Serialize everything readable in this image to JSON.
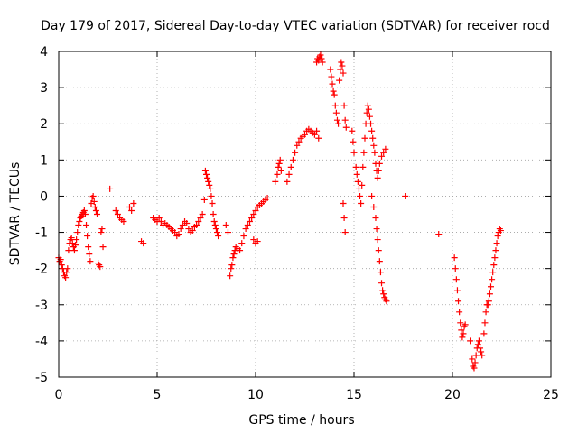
{
  "chart_data": {
    "type": "scatter",
    "title": "Day 179 of 2017, Sidereal Day-to-day VTEC variation (SDTVAR) for receiver rocd",
    "xlabel": "GPS time / hours",
    "ylabel": "SDTVAR / TECUs",
    "xlim": [
      0,
      25
    ],
    "ylim": [
      -5,
      4
    ],
    "xticks": [
      0,
      5,
      10,
      15,
      20,
      25
    ],
    "yticks": [
      -5,
      -4,
      -3,
      -2,
      -1,
      0,
      1,
      2,
      3,
      4
    ],
    "xtick_labels": [
      "0",
      "5",
      "10",
      "15",
      "20",
      "25"
    ],
    "ytick_labels": [
      "-5",
      "-4",
      "-3",
      "-2",
      "-1",
      "0",
      "1",
      "2",
      "3",
      "4"
    ],
    "grid": true,
    "marker": "+",
    "color": "#ff0000",
    "series": [
      {
        "name": "SDTVAR",
        "points": [
          [
            0.0,
            -1.7
          ],
          [
            0.05,
            -1.8
          ],
          [
            0.1,
            -1.75
          ],
          [
            0.15,
            -1.9
          ],
          [
            0.2,
            -2.0
          ],
          [
            0.25,
            -2.1
          ],
          [
            0.3,
            -2.2
          ],
          [
            0.35,
            -2.25
          ],
          [
            0.4,
            -2.1
          ],
          [
            0.45,
            -2.0
          ],
          [
            0.5,
            -1.5
          ],
          [
            0.55,
            -1.3
          ],
          [
            0.6,
            -1.2
          ],
          [
            0.65,
            -1.15
          ],
          [
            0.7,
            -1.3
          ],
          [
            0.75,
            -1.4
          ],
          [
            0.8,
            -1.5
          ],
          [
            0.85,
            -1.35
          ],
          [
            0.9,
            -1.2
          ],
          [
            0.95,
            -1.0
          ],
          [
            1.0,
            -0.8
          ],
          [
            1.05,
            -0.7
          ],
          [
            1.1,
            -0.6
          ],
          [
            1.15,
            -0.55
          ],
          [
            1.2,
            -0.5
          ],
          [
            1.25,
            -0.45
          ],
          [
            1.3,
            -0.4
          ],
          [
            1.35,
            -0.5
          ],
          [
            1.4,
            -0.8
          ],
          [
            1.45,
            -1.1
          ],
          [
            1.5,
            -1.4
          ],
          [
            1.55,
            -1.6
          ],
          [
            1.6,
            -1.8
          ],
          [
            1.65,
            -0.2
          ],
          [
            1.7,
            -0.05
          ],
          [
            1.75,
            0.0
          ],
          [
            1.8,
            -0.15
          ],
          [
            1.85,
            -0.3
          ],
          [
            1.9,
            -0.4
          ],
          [
            1.95,
            -0.5
          ],
          [
            2.0,
            -1.85
          ],
          [
            2.05,
            -1.9
          ],
          [
            2.1,
            -1.95
          ],
          [
            2.15,
            -1.0
          ],
          [
            2.2,
            -0.9
          ],
          [
            2.25,
            -1.4
          ],
          [
            2.6,
            0.2
          ],
          [
            2.9,
            -0.4
          ],
          [
            3.0,
            -0.5
          ],
          [
            3.1,
            -0.6
          ],
          [
            3.2,
            -0.65
          ],
          [
            3.3,
            -0.7
          ],
          [
            3.6,
            -0.3
          ],
          [
            3.7,
            -0.4
          ],
          [
            3.8,
            -0.2
          ],
          [
            4.2,
            -1.25
          ],
          [
            4.3,
            -1.3
          ],
          [
            4.8,
            -0.6
          ],
          [
            4.9,
            -0.65
          ],
          [
            5.0,
            -0.7
          ],
          [
            5.1,
            -0.6
          ],
          [
            5.2,
            -0.7
          ],
          [
            5.3,
            -0.8
          ],
          [
            5.4,
            -0.75
          ],
          [
            5.5,
            -0.8
          ],
          [
            5.6,
            -0.85
          ],
          [
            5.7,
            -0.9
          ],
          [
            5.8,
            -0.95
          ],
          [
            5.9,
            -1.0
          ],
          [
            6.0,
            -1.1
          ],
          [
            6.1,
            -1.05
          ],
          [
            6.2,
            -0.9
          ],
          [
            6.3,
            -0.8
          ],
          [
            6.4,
            -0.7
          ],
          [
            6.5,
            -0.75
          ],
          [
            6.6,
            -0.9
          ],
          [
            6.7,
            -1.0
          ],
          [
            6.8,
            -0.95
          ],
          [
            6.9,
            -0.85
          ],
          [
            7.0,
            -0.8
          ],
          [
            7.1,
            -0.7
          ],
          [
            7.2,
            -0.6
          ],
          [
            7.3,
            -0.5
          ],
          [
            7.4,
            -0.1
          ],
          [
            7.45,
            0.7
          ],
          [
            7.5,
            0.6
          ],
          [
            7.55,
            0.5
          ],
          [
            7.6,
            0.4
          ],
          [
            7.65,
            0.3
          ],
          [
            7.7,
            0.2
          ],
          [
            7.75,
            0.0
          ],
          [
            7.8,
            -0.2
          ],
          [
            7.85,
            -0.5
          ],
          [
            7.9,
            -0.7
          ],
          [
            7.95,
            -0.8
          ],
          [
            8.0,
            -0.9
          ],
          [
            8.05,
            -1.0
          ],
          [
            8.1,
            -1.1
          ],
          [
            8.5,
            -0.8
          ],
          [
            8.6,
            -1.0
          ],
          [
            8.7,
            -2.2
          ],
          [
            8.75,
            -2.0
          ],
          [
            8.8,
            -1.9
          ],
          [
            8.85,
            -1.7
          ],
          [
            8.9,
            -1.6
          ],
          [
            8.95,
            -1.5
          ],
          [
            9.0,
            -1.4
          ],
          [
            9.1,
            -1.45
          ],
          [
            9.2,
            -1.5
          ],
          [
            9.3,
            -1.3
          ],
          [
            9.4,
            -1.1
          ],
          [
            9.5,
            -0.9
          ],
          [
            9.6,
            -0.8
          ],
          [
            9.7,
            -0.7
          ],
          [
            9.8,
            -0.6
          ],
          [
            9.9,
            -0.5
          ],
          [
            10.0,
            -0.4
          ],
          [
            10.1,
            -0.3
          ],
          [
            10.2,
            -0.25
          ],
          [
            10.3,
            -0.2
          ],
          [
            10.4,
            -0.15
          ],
          [
            10.5,
            -0.1
          ],
          [
            10.6,
            -0.05
          ],
          [
            9.9,
            -1.2
          ],
          [
            10.0,
            -1.3
          ],
          [
            10.1,
            -1.25
          ],
          [
            11.0,
            0.4
          ],
          [
            11.1,
            0.6
          ],
          [
            11.15,
            0.8
          ],
          [
            11.2,
            0.9
          ],
          [
            11.25,
            1.0
          ],
          [
            11.3,
            0.7
          ],
          [
            11.6,
            0.4
          ],
          [
            11.7,
            0.6
          ],
          [
            11.8,
            0.8
          ],
          [
            11.9,
            1.0
          ],
          [
            12.0,
            1.2
          ],
          [
            12.1,
            1.4
          ],
          [
            12.2,
            1.5
          ],
          [
            12.3,
            1.6
          ],
          [
            12.4,
            1.65
          ],
          [
            12.5,
            1.7
          ],
          [
            12.6,
            1.8
          ],
          [
            12.7,
            1.85
          ],
          [
            12.8,
            1.8
          ],
          [
            12.9,
            1.75
          ],
          [
            13.0,
            1.7
          ],
          [
            13.1,
            1.8
          ],
          [
            13.2,
            1.6
          ],
          [
            13.1,
            3.7
          ],
          [
            13.15,
            3.8
          ],
          [
            13.2,
            3.75
          ],
          [
            13.25,
            3.85
          ],
          [
            13.3,
            3.9
          ],
          [
            13.35,
            3.8
          ],
          [
            13.4,
            3.7
          ],
          [
            13.8,
            3.5
          ],
          [
            13.85,
            3.3
          ],
          [
            13.9,
            3.1
          ],
          [
            13.95,
            2.9
          ],
          [
            14.0,
            2.8
          ],
          [
            14.05,
            2.5
          ],
          [
            14.1,
            2.3
          ],
          [
            14.15,
            2.1
          ],
          [
            14.2,
            2.0
          ],
          [
            14.25,
            3.2
          ],
          [
            14.3,
            3.5
          ],
          [
            14.35,
            3.7
          ],
          [
            14.4,
            3.6
          ],
          [
            14.45,
            3.4
          ],
          [
            14.5,
            2.5
          ],
          [
            14.55,
            2.1
          ],
          [
            14.6,
            1.9
          ],
          [
            14.45,
            -0.2
          ],
          [
            14.5,
            -0.6
          ],
          [
            14.55,
            -1.0
          ],
          [
            14.9,
            1.8
          ],
          [
            14.95,
            1.5
          ],
          [
            15.0,
            1.2
          ],
          [
            15.1,
            0.8
          ],
          [
            15.15,
            0.6
          ],
          [
            15.2,
            0.4
          ],
          [
            15.25,
            0.2
          ],
          [
            15.3,
            0.0
          ],
          [
            15.35,
            -0.2
          ],
          [
            15.4,
            0.3
          ],
          [
            15.45,
            0.8
          ],
          [
            15.5,
            1.2
          ],
          [
            15.55,
            1.6
          ],
          [
            15.6,
            2.0
          ],
          [
            15.65,
            2.3
          ],
          [
            15.7,
            2.5
          ],
          [
            15.75,
            2.4
          ],
          [
            15.8,
            2.2
          ],
          [
            15.85,
            2.0
          ],
          [
            15.9,
            1.8
          ],
          [
            15.95,
            1.6
          ],
          [
            16.0,
            1.4
          ],
          [
            16.05,
            1.2
          ],
          [
            16.1,
            0.9
          ],
          [
            16.15,
            0.7
          ],
          [
            16.2,
            0.5
          ],
          [
            16.25,
            0.7
          ],
          [
            16.3,
            0.9
          ],
          [
            16.4,
            1.1
          ],
          [
            16.5,
            1.2
          ],
          [
            16.6,
            1.3
          ],
          [
            15.9,
            0.0
          ],
          [
            16.0,
            -0.3
          ],
          [
            16.1,
            -0.6
          ],
          [
            16.15,
            -0.9
          ],
          [
            16.2,
            -1.2
          ],
          [
            16.25,
            -1.5
          ],
          [
            16.3,
            -1.8
          ],
          [
            16.35,
            -2.1
          ],
          [
            16.4,
            -2.4
          ],
          [
            16.45,
            -2.6
          ],
          [
            16.5,
            -2.7
          ],
          [
            16.55,
            -2.8
          ],
          [
            16.6,
            -2.85
          ],
          [
            16.65,
            -2.9
          ],
          [
            17.6,
            0.0
          ],
          [
            19.3,
            -1.05
          ],
          [
            20.1,
            -1.7
          ],
          [
            20.15,
            -2.0
          ],
          [
            20.2,
            -2.3
          ],
          [
            20.25,
            -2.6
          ],
          [
            20.3,
            -2.9
          ],
          [
            20.35,
            -3.2
          ],
          [
            20.4,
            -3.5
          ],
          [
            20.45,
            -3.7
          ],
          [
            20.5,
            -3.9
          ],
          [
            20.55,
            -3.8
          ],
          [
            20.6,
            -3.6
          ],
          [
            20.65,
            -3.55
          ],
          [
            20.9,
            -4.0
          ],
          [
            21.0,
            -4.5
          ],
          [
            21.05,
            -4.7
          ],
          [
            21.1,
            -4.75
          ],
          [
            21.15,
            -4.6
          ],
          [
            21.2,
            -4.4
          ],
          [
            21.25,
            -4.2
          ],
          [
            21.3,
            -4.1
          ],
          [
            21.35,
            -4.0
          ],
          [
            21.4,
            -4.2
          ],
          [
            21.45,
            -4.3
          ],
          [
            21.5,
            -4.4
          ],
          [
            21.6,
            -3.8
          ],
          [
            21.65,
            -3.5
          ],
          [
            21.7,
            -3.2
          ],
          [
            21.75,
            -3.0
          ],
          [
            21.8,
            -3.0
          ],
          [
            21.85,
            -2.9
          ],
          [
            21.9,
            -2.7
          ],
          [
            21.95,
            -2.5
          ],
          [
            22.0,
            -2.3
          ],
          [
            22.05,
            -2.1
          ],
          [
            22.1,
            -1.9
          ],
          [
            22.15,
            -1.7
          ],
          [
            22.2,
            -1.5
          ],
          [
            22.25,
            -1.3
          ],
          [
            22.3,
            -1.1
          ],
          [
            22.35,
            -1.0
          ],
          [
            22.4,
            -0.9
          ],
          [
            22.45,
            -0.95
          ]
        ]
      }
    ]
  }
}
